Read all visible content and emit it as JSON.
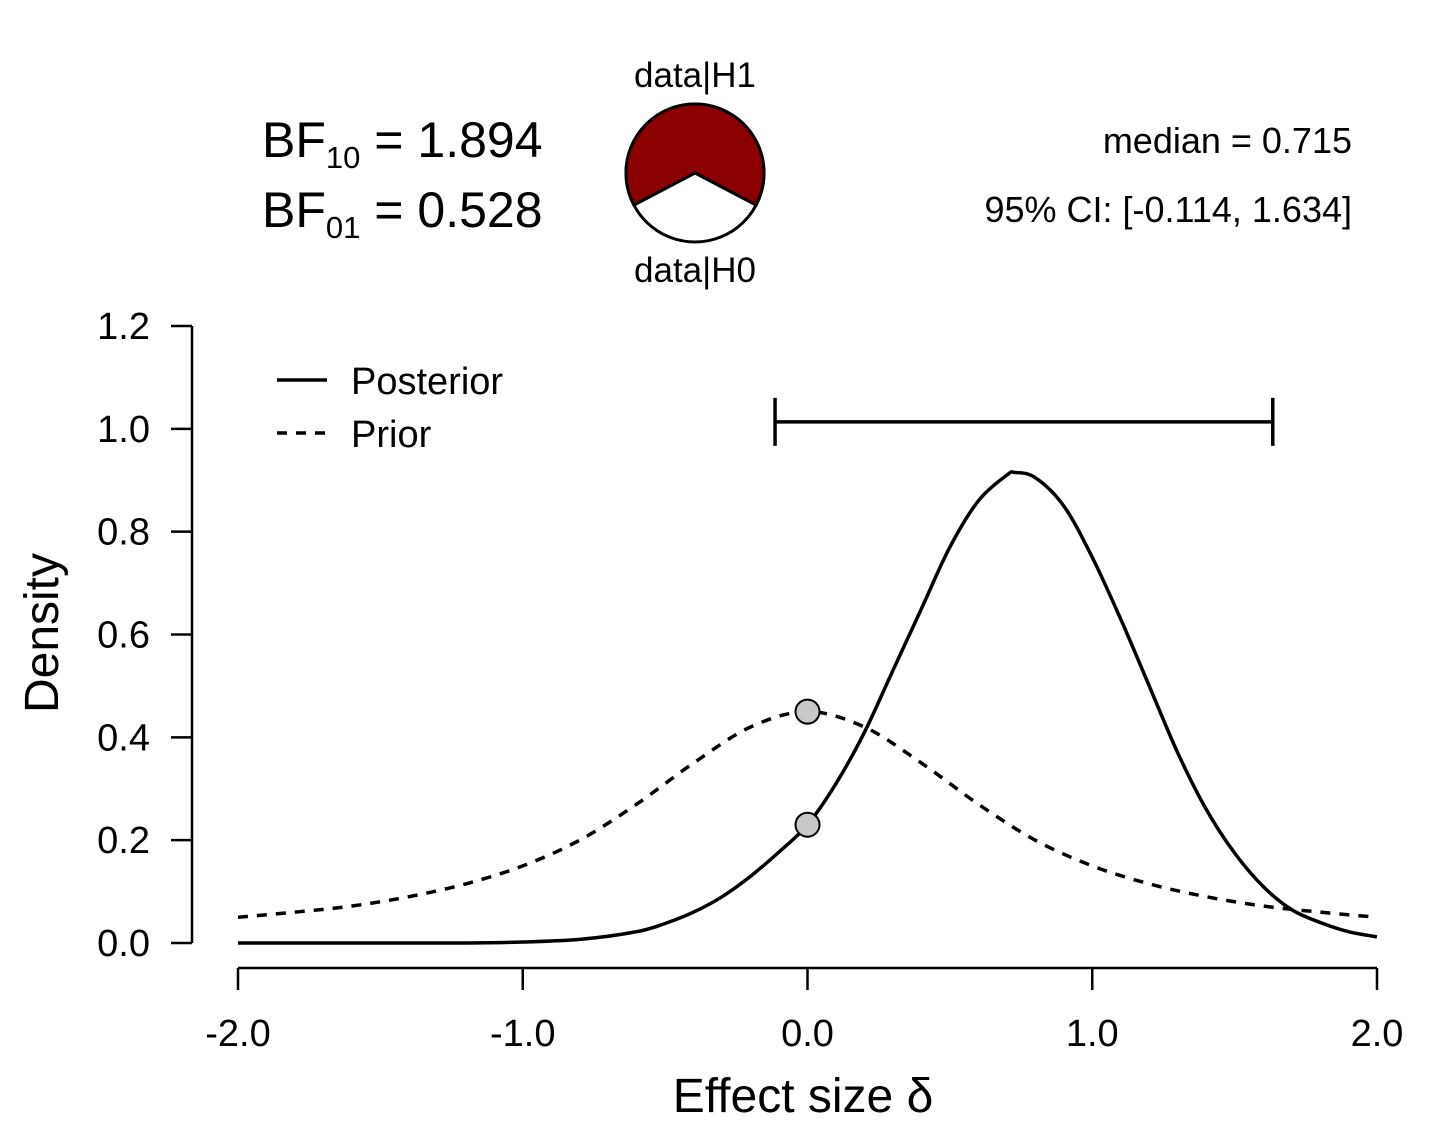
{
  "bayes_factors": {
    "bf10": {
      "base": "BF",
      "sub": "10",
      "value": "= 1.894"
    },
    "bf01": {
      "base": "BF",
      "sub": "01",
      "value": "= 0.528"
    }
  },
  "pie": {
    "top_label": "data|H1",
    "bottom_label": "data|H0",
    "h1_proportion": 0.654,
    "h1_color": "#8b0000",
    "h0_color": "#ffffff"
  },
  "stats": {
    "median_text": "median = 0.715",
    "ci_text": "95% CI: [-0.114, 1.634]"
  },
  "chart_data": {
    "type": "line",
    "xlabel": "Effect size δ",
    "ylabel": "Density",
    "xlim": [
      -2.0,
      2.0
    ],
    "ylim": [
      0.0,
      1.2
    ],
    "x_ticks": [
      -2.0,
      -1.0,
      0.0,
      1.0,
      2.0
    ],
    "x_tick_labels": [
      "-2.0",
      "-1.0",
      "0.0",
      "1.0",
      "2.0"
    ],
    "y_ticks": [
      0.0,
      0.2,
      0.4,
      0.6,
      0.8,
      1.0,
      1.2
    ],
    "y_tick_labels": [
      "0.0",
      "0.2",
      "0.4",
      "0.6",
      "0.8",
      "1.0",
      "1.2"
    ],
    "legend": {
      "position": "top-left",
      "entries": [
        {
          "label": "Posterior",
          "style": "solid"
        },
        {
          "label": "Prior",
          "style": "dashed"
        }
      ]
    },
    "series": [
      {
        "name": "Posterior",
        "style": "solid",
        "x": [
          -2.0,
          -1.5,
          -1.2,
          -1.0,
          -0.8,
          -0.6,
          -0.5,
          -0.4,
          -0.3,
          -0.2,
          -0.1,
          0.0,
          0.1,
          0.2,
          0.3,
          0.4,
          0.5,
          0.6,
          0.7,
          0.73,
          0.8,
          0.9,
          1.0,
          1.1,
          1.2,
          1.3,
          1.4,
          1.5,
          1.6,
          1.7,
          1.8,
          1.9,
          2.0
        ],
        "y": [
          0.0,
          0.0,
          0.0,
          0.002,
          0.007,
          0.022,
          0.038,
          0.06,
          0.09,
          0.13,
          0.177,
          0.23,
          0.31,
          0.41,
          0.53,
          0.65,
          0.77,
          0.86,
          0.91,
          0.915,
          0.905,
          0.85,
          0.75,
          0.63,
          0.5,
          0.37,
          0.26,
          0.175,
          0.11,
          0.065,
          0.04,
          0.022,
          0.012
        ]
      },
      {
        "name": "Prior",
        "style": "dashed",
        "x": [
          -2.0,
          -1.8,
          -1.6,
          -1.4,
          -1.2,
          -1.0,
          -0.8,
          -0.6,
          -0.4,
          -0.2,
          0.0,
          0.2,
          0.4,
          0.6,
          0.8,
          1.0,
          1.2,
          1.4,
          1.6,
          1.8,
          2.0
        ],
        "y": [
          0.05,
          0.06,
          0.072,
          0.09,
          0.115,
          0.15,
          0.2,
          0.27,
          0.35,
          0.42,
          0.45,
          0.42,
          0.35,
          0.27,
          0.2,
          0.15,
          0.115,
          0.09,
          0.072,
          0.06,
          0.05
        ]
      }
    ],
    "points": [
      {
        "series": "Prior",
        "x": 0.0,
        "y": 0.45
      },
      {
        "series": "Posterior",
        "x": 0.0,
        "y": 0.23
      }
    ],
    "credible_interval": {
      "lower": -0.114,
      "upper": 1.634,
      "y": 1.0
    }
  }
}
